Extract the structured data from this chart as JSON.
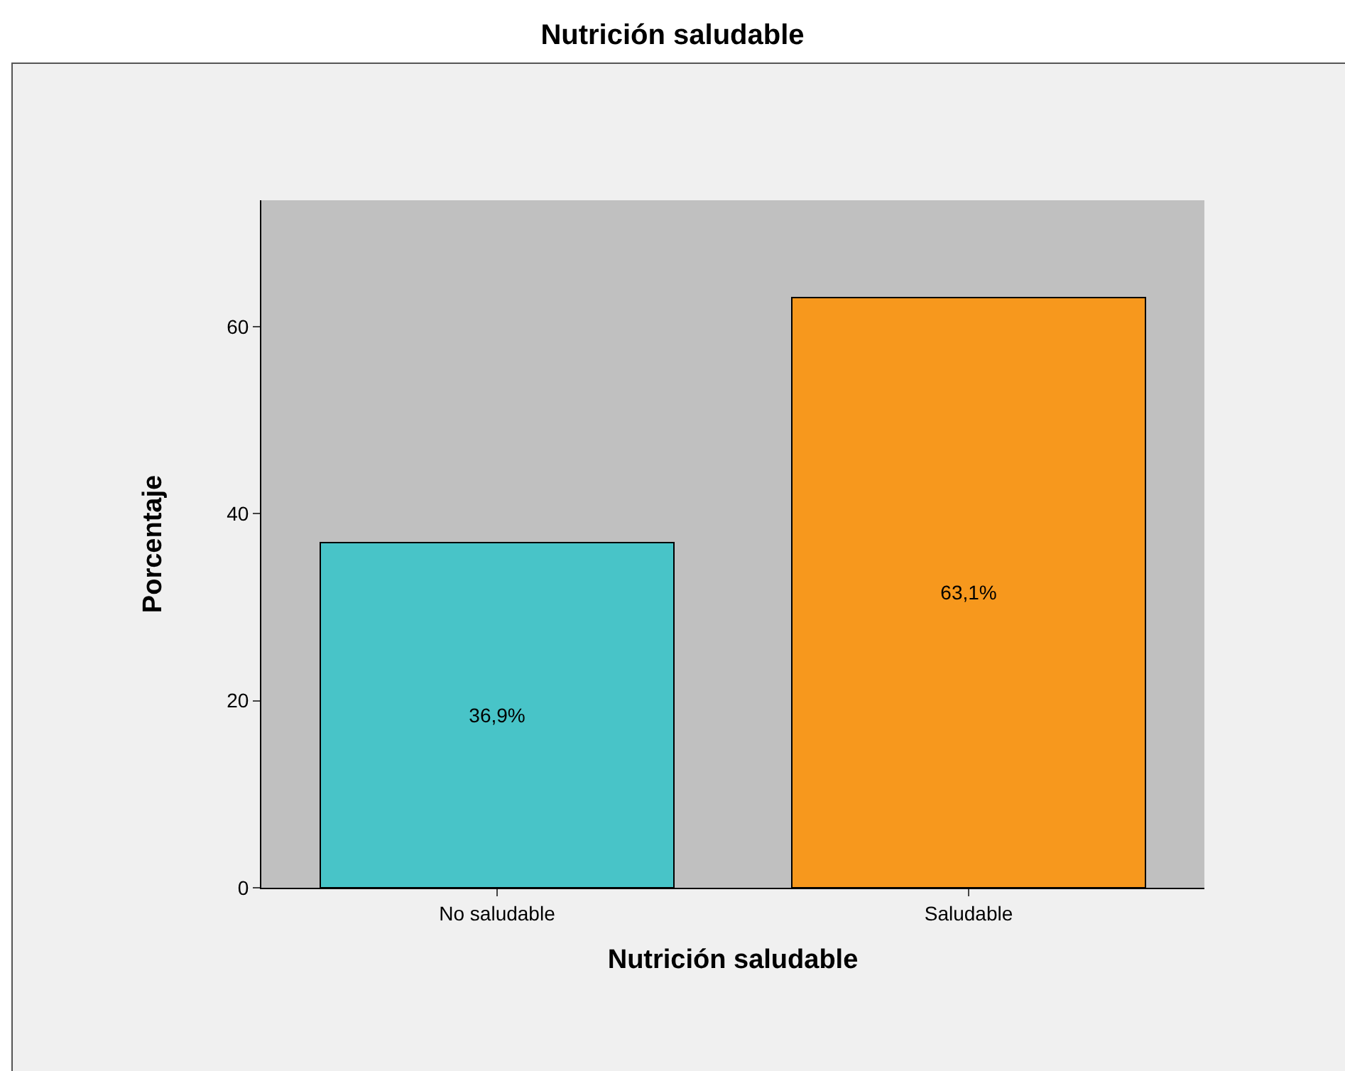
{
  "chart_data": {
    "type": "bar",
    "title": "Nutrición saludable",
    "xlabel": "Nutrición saludable",
    "ylabel": "Porcentaje",
    "categories": [
      "No saludable",
      "Saludable"
    ],
    "values": [
      36.9,
      63.1
    ],
    "colors": [
      "#48c4c8",
      "#f7981d"
    ],
    "value_labels": [
      "36,9%",
      "63,1%"
    ],
    "ylim": [
      0,
      73.5
    ],
    "yticks": [
      0,
      20,
      40,
      60
    ],
    "grid": false,
    "legend": false
  }
}
